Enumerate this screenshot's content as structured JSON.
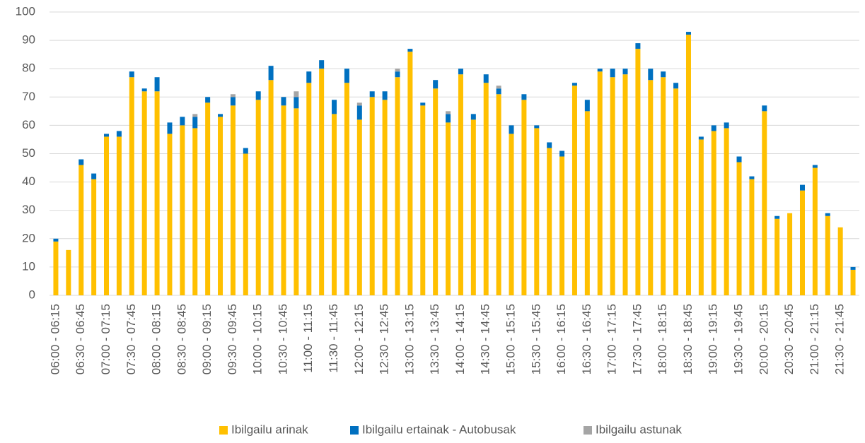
{
  "chart_data": {
    "type": "stacked_bar",
    "categories": [
      "06:00 - 06:15",
      null,
      "06:30 - 06:45",
      null,
      "07:00 - 07:15",
      null,
      "07:30 - 07:45",
      null,
      "08:00 - 08:15",
      null,
      "08:30 - 08:45",
      null,
      "09:00 - 09:15",
      null,
      "09:30 - 09:45",
      null,
      "10:00 - 10:15",
      null,
      "10:30 - 10:45",
      null,
      "11:00 - 11:15",
      null,
      "11:30 - 11:45",
      null,
      "12:00 - 12:15",
      null,
      "12:30 - 12:45",
      null,
      "13:00 - 13:15",
      null,
      "13:30 - 13:45",
      null,
      "14:00 - 14:15",
      null,
      "14:30 - 14:45",
      null,
      "15:00 - 15:15",
      null,
      "15:30 - 15:45",
      null,
      "16:00 - 16:15",
      null,
      "16:30 - 16:45",
      null,
      "17:00 - 17:15",
      null,
      "17:30 - 17:45",
      null,
      "18:00 - 18:15",
      null,
      "18:30 - 18:45",
      null,
      "19:00 - 19:15",
      null,
      "19:30 - 19:45",
      null,
      "20:00 - 20:15",
      null,
      "20:30 - 20:45",
      null,
      "21:00 - 21:15",
      null,
      "21:30 - 21:45",
      null
    ],
    "series": [
      {
        "name": "Ibilgailu arinak",
        "color": "#FFC000",
        "values": [
          19,
          16,
          46,
          41,
          56,
          56,
          77,
          72,
          72,
          57,
          60,
          59,
          68,
          63,
          67,
          50,
          69,
          76,
          67,
          66,
          75,
          80,
          64,
          75,
          62,
          70,
          69,
          77,
          86,
          67,
          73,
          61,
          78,
          62,
          75,
          71,
          57,
          69,
          59,
          52,
          49,
          74,
          65,
          79,
          77,
          78,
          87,
          76,
          77,
          73,
          92,
          55,
          58,
          59,
          47,
          41,
          65,
          27,
          29,
          37,
          45,
          28,
          24,
          9
        ]
      },
      {
        "name": "Ibilgailu ertainak - Autobusak",
        "color": "#0070C0",
        "values": [
          1,
          0,
          2,
          2,
          1,
          2,
          2,
          1,
          5,
          4,
          3,
          4,
          2,
          1,
          3,
          2,
          3,
          5,
          3,
          4,
          4,
          3,
          5,
          5,
          5,
          2,
          3,
          2,
          1,
          1,
          3,
          3,
          2,
          2,
          3,
          2,
          3,
          2,
          1,
          2,
          2,
          1,
          4,
          1,
          3,
          2,
          2,
          4,
          2,
          2,
          1,
          1,
          2,
          2,
          2,
          1,
          2,
          1,
          0,
          2,
          1,
          1,
          0,
          1
        ]
      },
      {
        "name": "Ibilgailu astunak",
        "color": "#A5A5A5",
        "values": [
          0,
          0,
          0,
          0,
          0,
          0,
          0,
          0,
          0,
          0,
          0,
          1,
          0,
          0,
          1,
          0,
          0,
          0,
          0,
          2,
          0,
          0,
          0,
          0,
          1,
          0,
          0,
          1,
          0,
          0,
          0,
          1,
          0,
          0,
          0,
          1,
          0,
          0,
          0,
          0,
          0,
          0,
          0,
          0,
          0,
          0,
          0,
          0,
          0,
          0,
          0,
          0,
          0,
          0,
          0,
          0,
          0,
          0,
          0,
          0,
          0,
          0,
          0,
          0
        ]
      }
    ],
    "ylim": [
      0,
      100
    ],
    "yticks": [
      0,
      10,
      20,
      30,
      40,
      50,
      60,
      70,
      80,
      90,
      100
    ],
    "grid": true,
    "legend": "bottom"
  }
}
